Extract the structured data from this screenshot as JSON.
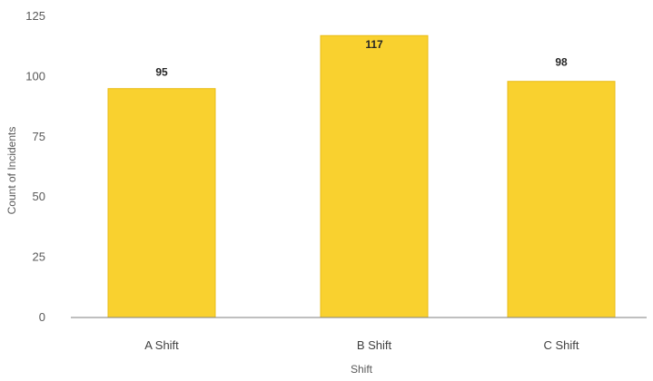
{
  "chart_data": {
    "type": "bar",
    "title": "",
    "xlabel": "Shift",
    "ylabel": "Count of Incidents",
    "categories": [
      "A Shift",
      "B Shift",
      "C Shift"
    ],
    "values": [
      95,
      117,
      98
    ],
    "data_labels": [
      "95",
      "117",
      "98"
    ],
    "ylim": [
      0,
      125
    ],
    "yticks": [
      0,
      25,
      50,
      75,
      100,
      125
    ],
    "grid": false,
    "legend": "none",
    "bar_color": "#F9D12F",
    "bar_edge_color": "#E9BD17",
    "axis_color": "#7F7F7F"
  }
}
